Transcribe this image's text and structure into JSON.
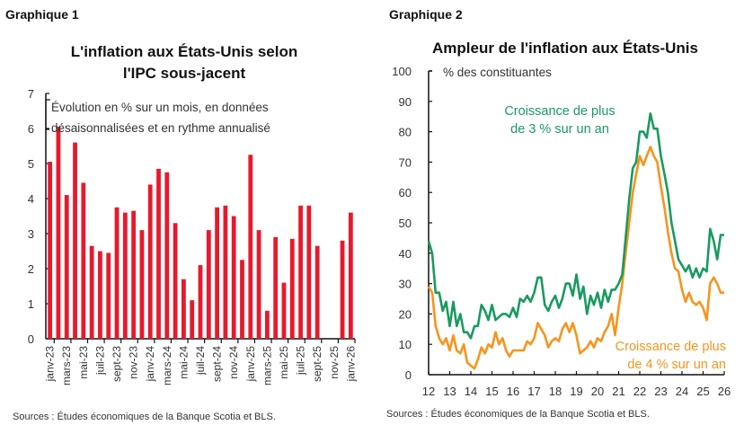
{
  "chart_data": [
    {
      "type": "bar",
      "figure_label": "Graphique 1",
      "title": "L'inflation aux États-Unis selon l'IPC sous-jacent",
      "subtitle": "Évolution en % sur un mois, en données désaisonnalisées et en rythme annualisé",
      "subtitle_lines": [
        "Évolution en % sur un mois, en données",
        "désaisonnalisées et en rythme annualisé"
      ],
      "xlabel": "",
      "ylabel": "",
      "ylim": [
        0,
        7
      ],
      "yticks": [
        0,
        1,
        2,
        3,
        4,
        5,
        6,
        7
      ],
      "grid": false,
      "color": "#e8192c",
      "categories": [
        "janv-23",
        "févr-23",
        "mars-23",
        "avr-23",
        "mai-23",
        "juin-23",
        "juil-23",
        "août-23",
        "sept-23",
        "oct-23",
        "nov-23",
        "déc-23",
        "janv-24",
        "févr-24",
        "mars-24",
        "avr-24",
        "mai-24",
        "juin-24",
        "juil-24",
        "août-24",
        "sept-24",
        "oct-24",
        "nov-24",
        "déc-24",
        "janv-25",
        "févr-25",
        "mars-25",
        "avr-25",
        "mai-25",
        "juin-25",
        "juil-25",
        "août-25",
        "sept-25",
        "oct-25",
        "nov-25",
        "déc-25",
        "janv-26"
      ],
      "tick_labels": [
        "janv-23",
        "mars-23",
        "mai-23",
        "juil-23",
        "sept-23",
        "nov-23",
        "janv-24",
        "mars-24",
        "mai-24",
        "juil-24",
        "sept-24",
        "nov-24",
        "janv-25",
        "mars-25",
        "mai-25",
        "juil-25",
        "sept-25",
        "nov-25",
        "janv-26"
      ],
      "values": [
        5.05,
        6.05,
        4.1,
        5.6,
        4.45,
        2.65,
        2.5,
        2.45,
        3.75,
        3.6,
        3.65,
        3.1,
        4.4,
        4.85,
        4.75,
        3.3,
        1.7,
        1.1,
        2.1,
        3.1,
        3.75,
        3.8,
        3.5,
        2.25,
        5.25,
        3.1,
        0.8,
        2.9,
        1.6,
        2.85,
        3.8,
        3.8,
        2.65,
        null,
        null,
        2.8,
        3.6
      ],
      "source": "Sources : Études économiques de la Banque Scotia et BLS."
    },
    {
      "type": "line",
      "figure_label": "Graphique 2",
      "title": "Ampleur de l'inflation aux États-Unis",
      "ylabel": "% des constituantes",
      "xlabel": "",
      "ylim": [
        0,
        100
      ],
      "yticks": [
        0,
        10,
        20,
        30,
        40,
        50,
        60,
        70,
        80,
        90,
        100
      ],
      "xlim": [
        12,
        26
      ],
      "xticks": [
        12,
        13,
        14,
        15,
        16,
        17,
        18,
        19,
        20,
        21,
        22,
        23,
        24,
        25,
        26
      ],
      "grid": false,
      "legend_position": "inline annotations",
      "x": [
        12.0,
        12.17,
        12.33,
        12.5,
        12.67,
        12.83,
        13.0,
        13.17,
        13.33,
        13.5,
        13.67,
        13.83,
        14.0,
        14.17,
        14.33,
        14.5,
        14.67,
        14.83,
        15.0,
        15.17,
        15.33,
        15.5,
        15.67,
        15.83,
        16.0,
        16.17,
        16.33,
        16.5,
        16.67,
        16.83,
        17.0,
        17.17,
        17.33,
        17.5,
        17.67,
        17.83,
        18.0,
        18.17,
        18.33,
        18.5,
        18.67,
        18.83,
        19.0,
        19.17,
        19.33,
        19.5,
        19.67,
        19.83,
        20.0,
        20.17,
        20.33,
        20.5,
        20.67,
        20.83,
        21.0,
        21.17,
        21.33,
        21.5,
        21.67,
        21.83,
        22.0,
        22.17,
        22.33,
        22.5,
        22.67,
        22.83,
        23.0,
        23.17,
        23.33,
        23.5,
        23.67,
        23.83,
        24.0,
        24.17,
        24.33,
        24.5,
        24.67,
        24.83,
        25.0,
        25.17,
        25.33,
        25.5,
        25.67,
        25.83,
        26.0
      ],
      "series": [
        {
          "name": "Croissance de plus de 3 % sur un an",
          "label_lines": [
            "Croissance de plus",
            "de 3 % sur un an"
          ],
          "color": "#1a9a60",
          "values": [
            44,
            40,
            27,
            27,
            21,
            24,
            16,
            24,
            16,
            20,
            14,
            14,
            12,
            16,
            16,
            23,
            21,
            18,
            23,
            18,
            19,
            20,
            20,
            19,
            22,
            19,
            25,
            24,
            26,
            24,
            27,
            32,
            32,
            23,
            21,
            24,
            26,
            22,
            25,
            30,
            30,
            26,
            33,
            25,
            29,
            20,
            26,
            23,
            27,
            22,
            28,
            24,
            28,
            28,
            30,
            33,
            45,
            58,
            68,
            70,
            80,
            80,
            78,
            86,
            81,
            81,
            72,
            66,
            60,
            50,
            44,
            38,
            36,
            34,
            36,
            32,
            35,
            32,
            35,
            34,
            48,
            44,
            38,
            46,
            46
          ],
          "peak": {
            "x": 22.5,
            "y": 86
          }
        },
        {
          "name": "Croissance de plus de 4 % sur un an",
          "label_lines": [
            "Croissance de plus",
            "de 4 % sur un an"
          ],
          "color": "#f7941d",
          "values": [
            29,
            27,
            16,
            12,
            10,
            12,
            8,
            13,
            8,
            7,
            10,
            4,
            3,
            2,
            5,
            9,
            7,
            10,
            9,
            14,
            10,
            12,
            8,
            6,
            8,
            8,
            8,
            8,
            11,
            10,
            12,
            17,
            15,
            13,
            9,
            11,
            12,
            11,
            15,
            17,
            14,
            17,
            13,
            7,
            8,
            9,
            11,
            9,
            12,
            11,
            14,
            16,
            20,
            13,
            22,
            30,
            40,
            50,
            60,
            66,
            72,
            69,
            72,
            75,
            72,
            70,
            62,
            55,
            47,
            40,
            35,
            34,
            28,
            24,
            27,
            24,
            23,
            24,
            22,
            18,
            30,
            32,
            30,
            27,
            27
          ],
          "peak": {
            "x": 22.5,
            "y": 75
          }
        }
      ],
      "source": "Sources : Études économiques de la Banque Scotia et BLS."
    }
  ]
}
